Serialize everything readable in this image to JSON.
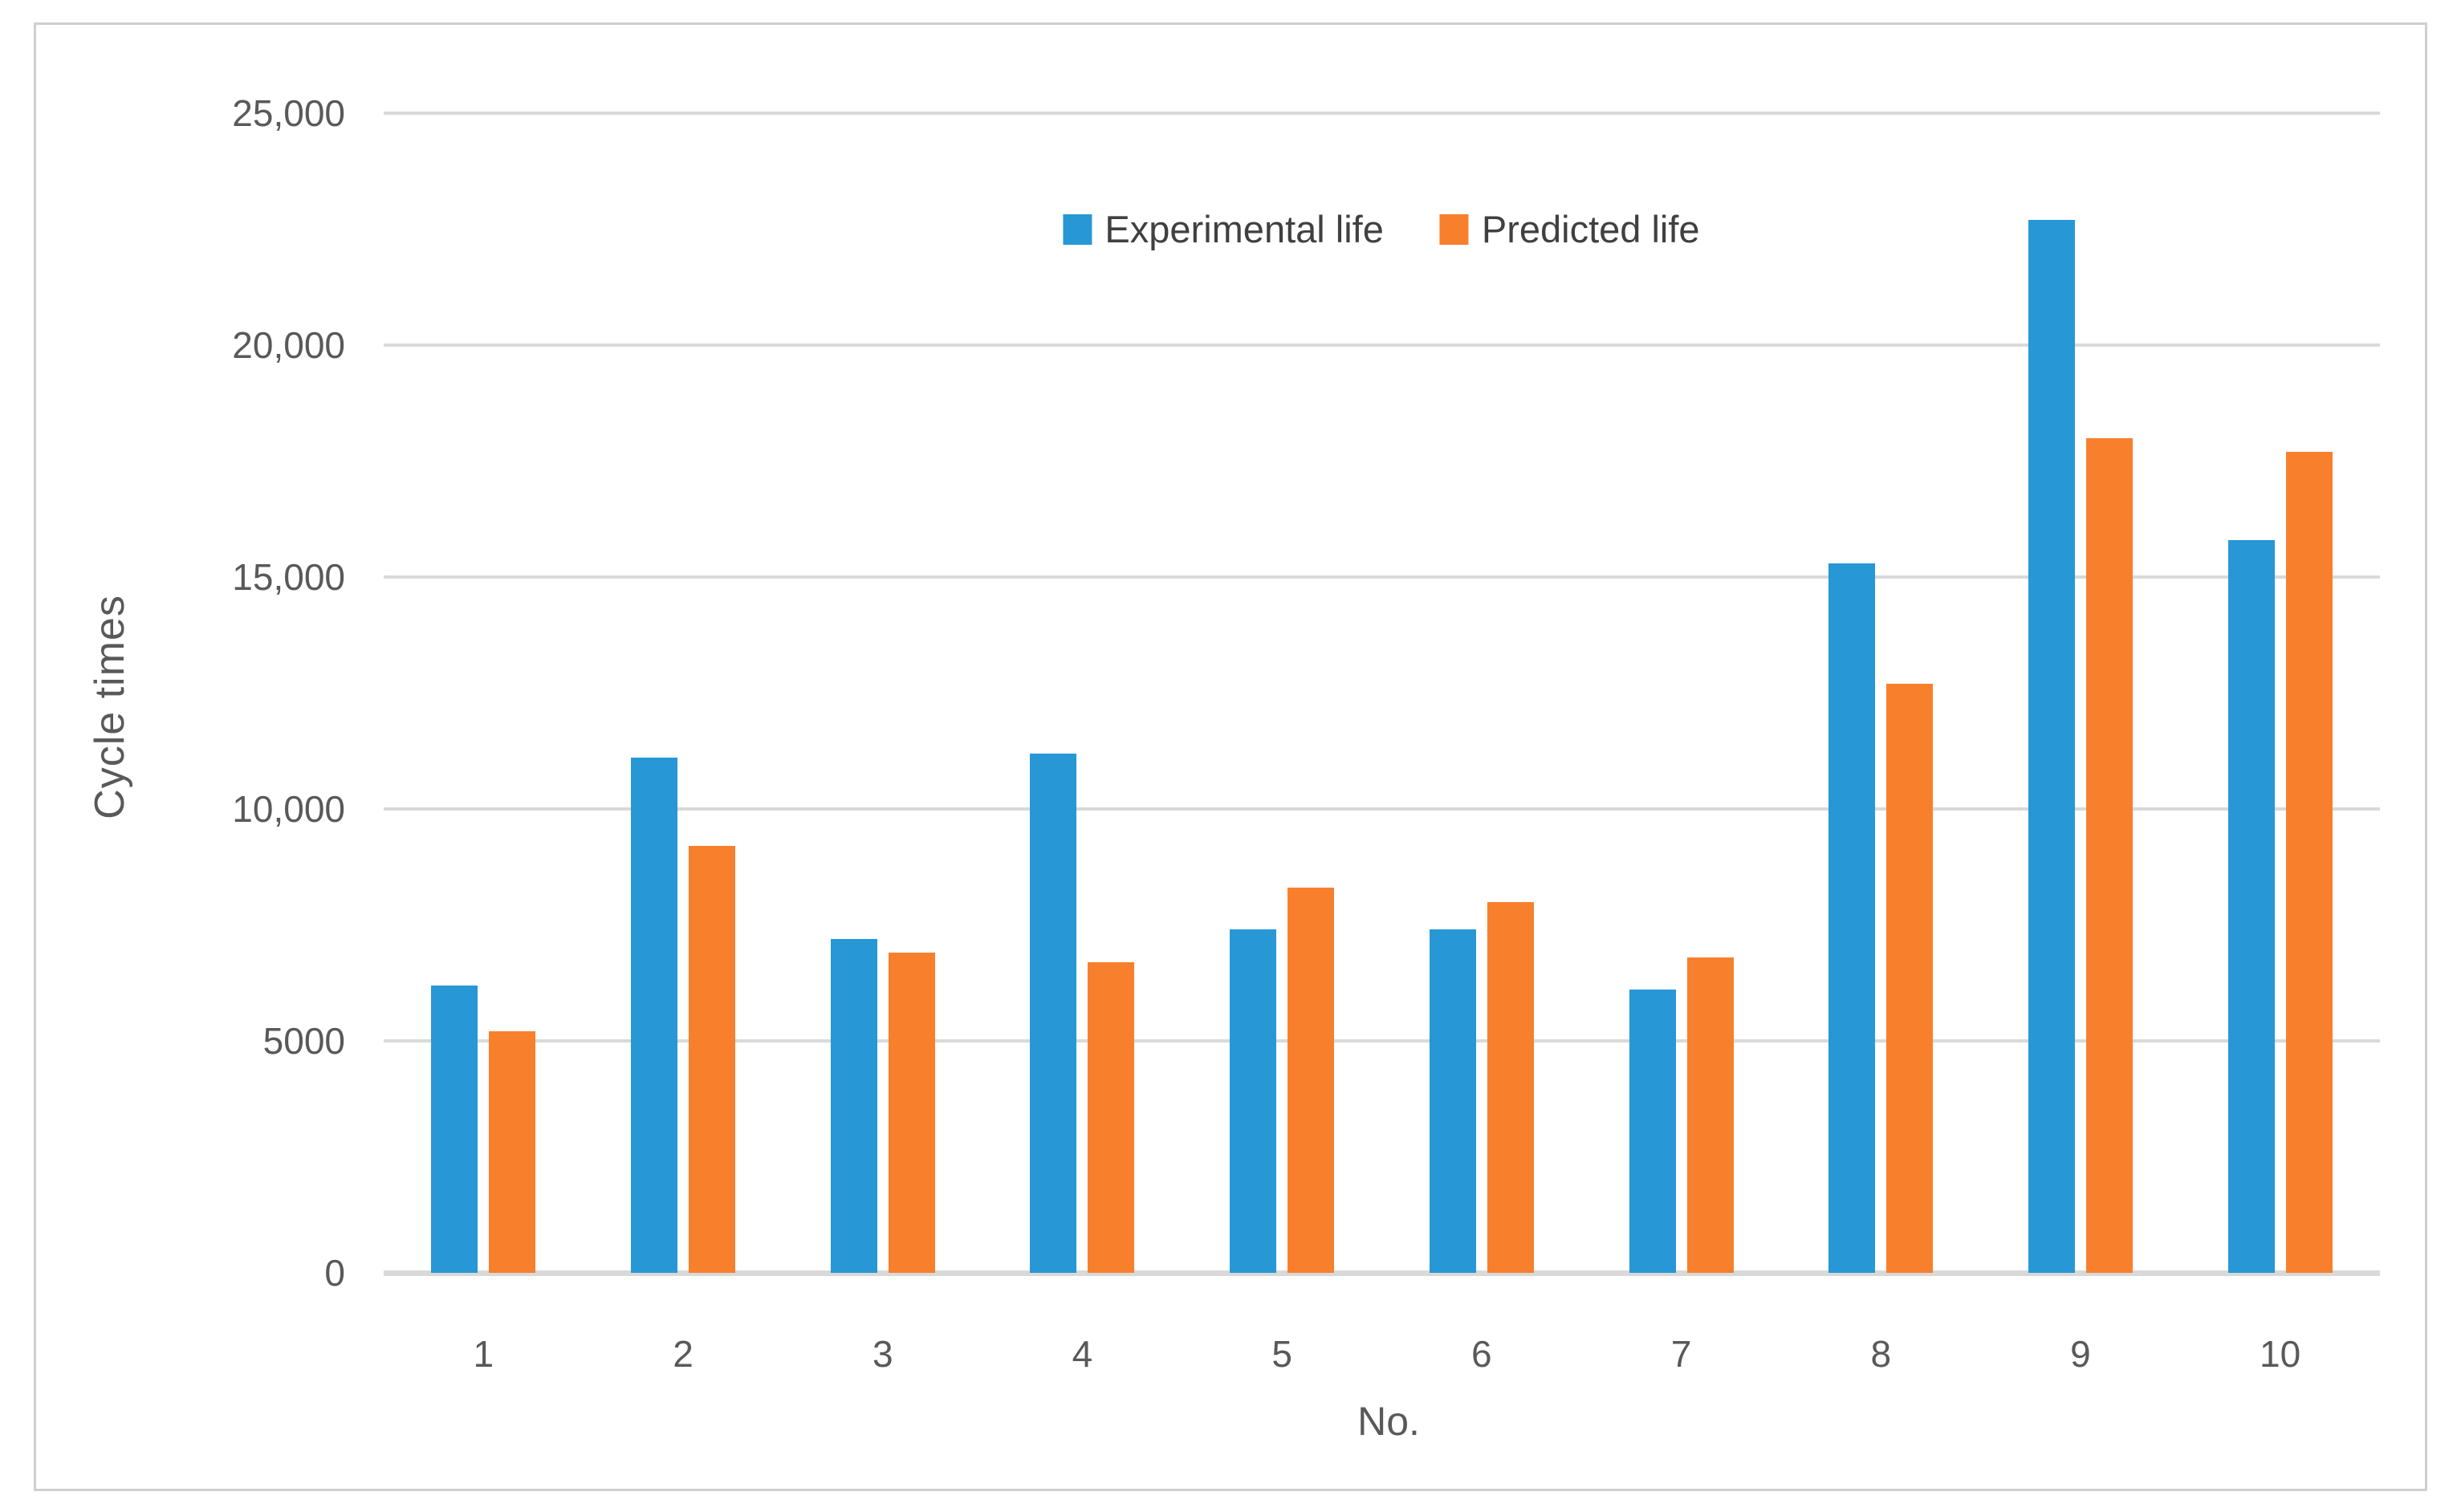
{
  "figure": {
    "background": "#ffffff",
    "frame_border_color": "#d0cece",
    "gridline_color": "#d9d9d9",
    "axis_line_color": "#d9d9d9",
    "tick_text_color": "#595959",
    "legend_text_color": "#404040"
  },
  "chart_data": {
    "type": "bar",
    "title": "",
    "categories": [
      "1",
      "2",
      "3",
      "4",
      "5",
      "6",
      "7",
      "8",
      "9",
      "10"
    ],
    "series": [
      {
        "name": "Experimental life",
        "color": "#2797d6",
        "values": [
          6200,
          11100,
          7200,
          11200,
          7400,
          7400,
          6100,
          15300,
          22700,
          15800
        ]
      },
      {
        "name": "Predicted life",
        "color": "#f8802d",
        "values": [
          5200,
          9200,
          6900,
          6700,
          8300,
          8000,
          6800,
          12700,
          18000,
          17700
        ]
      }
    ],
    "xlabel": "No.",
    "ylabel": "Cycle times",
    "ylim": [
      0,
      25000
    ],
    "ytick_step": 5000,
    "ytick_labels_top_down": [
      "25,000",
      "20,000",
      "15,000",
      "10,000",
      "5000",
      "0"
    ],
    "grid": true,
    "legend_position": "top-center-inside"
  }
}
